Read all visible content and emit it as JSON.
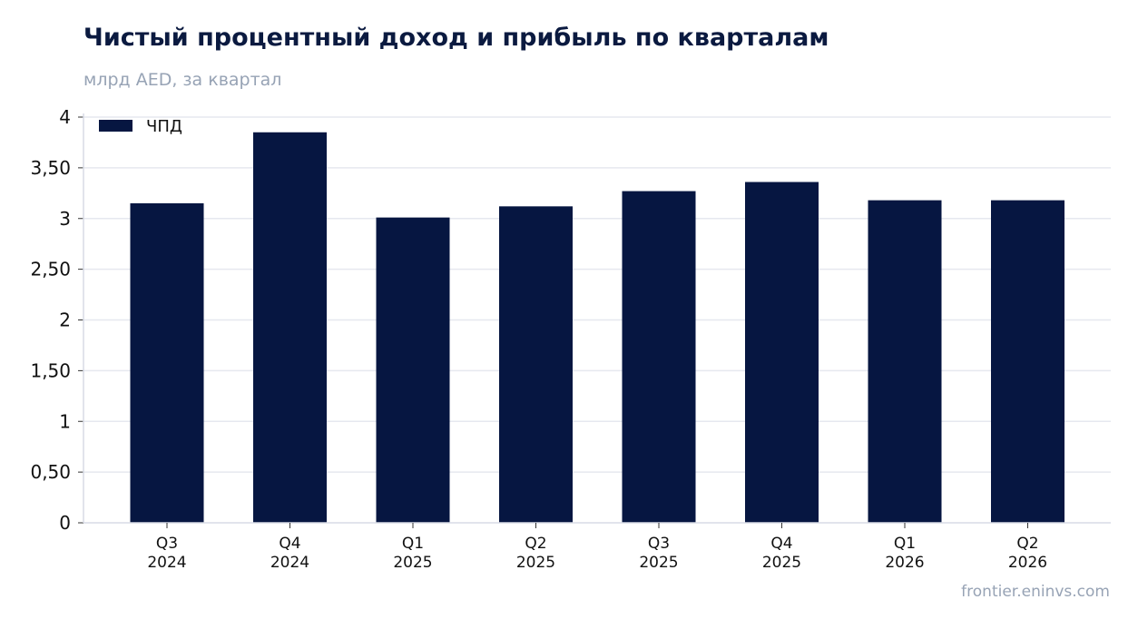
{
  "header": {
    "title": "Чистый процентный доход и прибыль по кварталам",
    "subtitle": "млрд AED, за квартал"
  },
  "footer": {
    "source": "frontier.eninvs.com"
  },
  "colors": {
    "bar": "#061641",
    "grid": "#e6e8ef",
    "axis": "#d8dce6"
  },
  "chart_data": {
    "type": "bar",
    "categories": [
      "Q3 2024",
      "Q4 2024",
      "Q1 2025",
      "Q2 2025",
      "Q3 2025",
      "Q4 2025",
      "Q1 2026",
      "Q2 2026"
    ],
    "category_lines": [
      [
        "Q3",
        "2024"
      ],
      [
        "Q4",
        "2024"
      ],
      [
        "Q1",
        "2025"
      ],
      [
        "Q2",
        "2025"
      ],
      [
        "Q3",
        "2025"
      ],
      [
        "Q4",
        "2025"
      ],
      [
        "Q1",
        "2026"
      ],
      [
        "Q2",
        "2026"
      ]
    ],
    "series": [
      {
        "name": "ЧПД",
        "values": [
          3.15,
          3.85,
          3.01,
          3.12,
          3.27,
          3.36,
          3.18,
          3.18
        ]
      }
    ],
    "ylim": [
      0,
      4
    ],
    "yticks": [
      0,
      0.5,
      1,
      1.5,
      2,
      2.5,
      3,
      3.5,
      4
    ],
    "ytick_labels": [
      "0",
      "0,50",
      "1",
      "1,50",
      "2",
      "2,50",
      "3",
      "3,50",
      "4"
    ],
    "grid": true,
    "legend_position": "top-left"
  }
}
